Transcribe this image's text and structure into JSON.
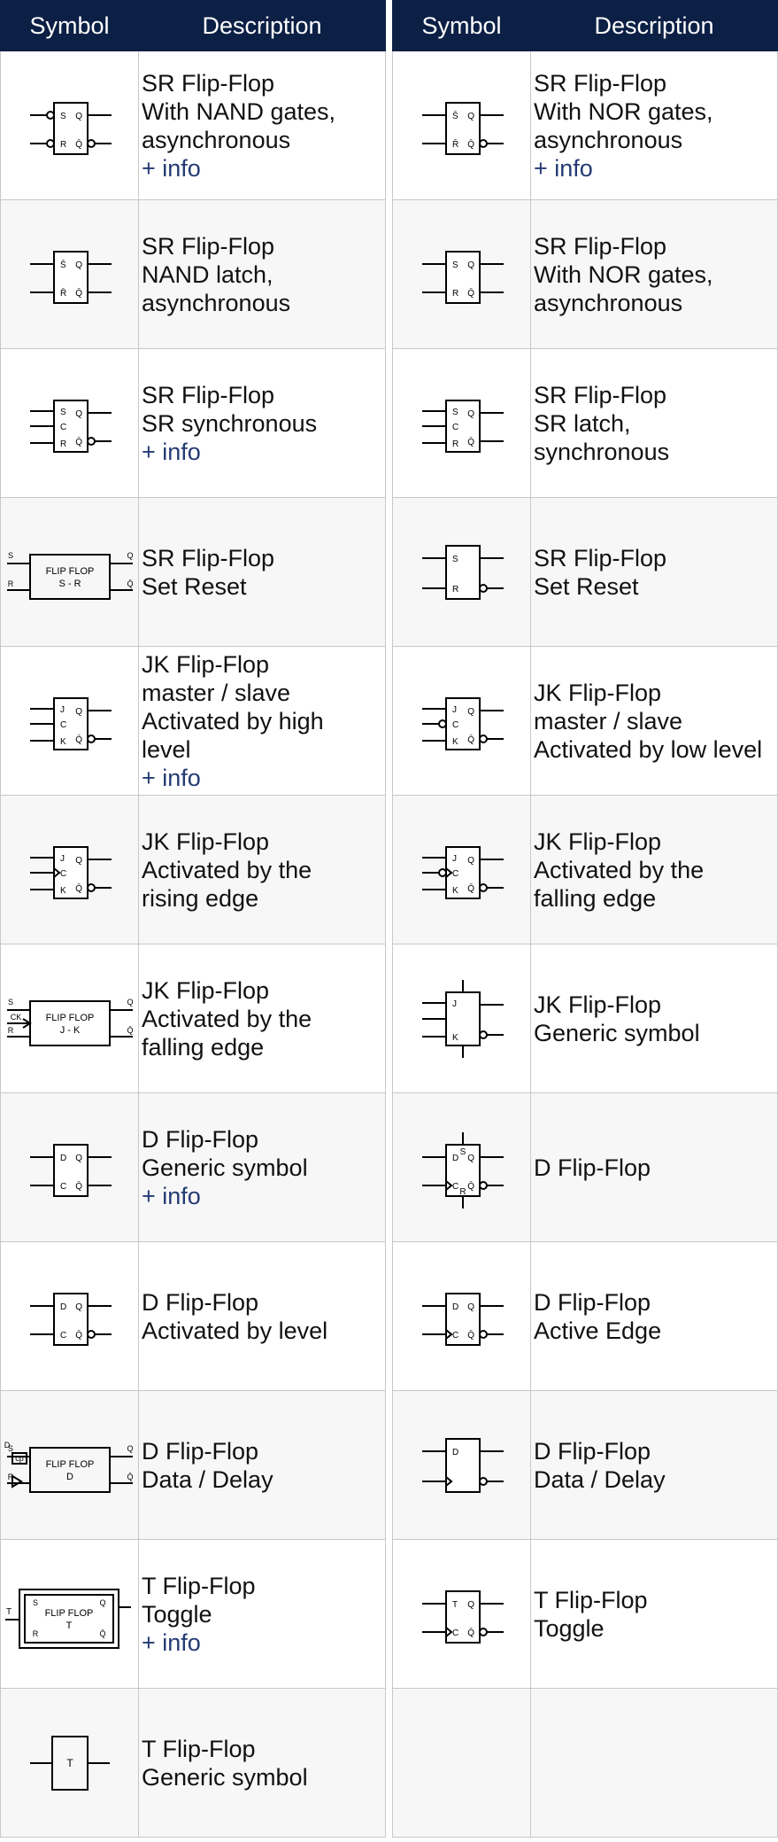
{
  "header": {
    "symbol": "Symbol",
    "description": "Description"
  },
  "columns": [
    {
      "rows": [
        {
          "symbol": "sr-nand-async",
          "lines": [
            "SR Flip-Flop",
            "With NAND gates,",
            "asynchronous"
          ],
          "info": "+ info"
        },
        {
          "symbol": "sr-nand-latch",
          "lines": [
            "SR Flip-Flop",
            "NAND latch,",
            "asynchronous"
          ]
        },
        {
          "symbol": "sr-sync",
          "lines": [
            "SR Flip-Flop",
            "SR synchronous"
          ],
          "info": "+ info"
        },
        {
          "symbol": "sr-block",
          "lines": [
            "SR Flip-Flop",
            "Set Reset"
          ]
        },
        {
          "symbol": "jk-high",
          "lines": [
            "JK Flip-Flop",
            "master / slave",
            "Activated by high",
            "level"
          ],
          "info": "+ info"
        },
        {
          "symbol": "jk-rising",
          "lines": [
            "JK Flip-Flop",
            "Activated by the",
            "rising edge"
          ]
        },
        {
          "symbol": "jk-block",
          "lines": [
            "JK Flip-Flop",
            "Activated by the",
            "falling edge"
          ]
        },
        {
          "symbol": "d-generic",
          "lines": [
            "D Flip-Flop",
            "Generic symbol"
          ],
          "info": "+ info"
        },
        {
          "symbol": "d-level",
          "lines": [
            "D Flip-Flop",
            "Activated by level"
          ]
        },
        {
          "symbol": "d-block",
          "lines": [
            "D Flip-Flop",
            "Data / Delay"
          ]
        },
        {
          "symbol": "t-block",
          "lines": [
            "T Flip-Flop",
            "Toggle"
          ],
          "info": "+ info"
        },
        {
          "symbol": "t-generic",
          "lines": [
            "T Flip-Flop",
            "Generic symbol"
          ]
        }
      ]
    },
    {
      "rows": [
        {
          "symbol": "sr-nor-async",
          "lines": [
            "SR Flip-Flop",
            "With NOR gates,",
            "asynchronous"
          ],
          "info": "+ info"
        },
        {
          "symbol": "sr-nor-plain",
          "lines": [
            "SR Flip-Flop",
            "With NOR gates,",
            "asynchronous"
          ]
        },
        {
          "symbol": "sr-latch-sync",
          "lines": [
            "SR Flip-Flop",
            "SR latch,",
            "synchronous"
          ]
        },
        {
          "symbol": "sr-simple",
          "lines": [
            "SR Flip-Flop",
            "Set Reset"
          ]
        },
        {
          "symbol": "jk-low",
          "lines": [
            "JK Flip-Flop",
            "master / slave",
            "Activated by low level"
          ]
        },
        {
          "symbol": "jk-falling",
          "lines": [
            "JK Flip-Flop",
            "Activated by the",
            "falling edge"
          ]
        },
        {
          "symbol": "jk-generic",
          "lines": [
            "JK Flip-Flop",
            "Generic symbol"
          ]
        },
        {
          "symbol": "d-sr",
          "lines": [
            "D Flip-Flop"
          ]
        },
        {
          "symbol": "d-edge",
          "lines": [
            "D Flip-Flop",
            "Active Edge"
          ]
        },
        {
          "symbol": "d-simple",
          "lines": [
            "D Flip-Flop",
            "Data / Delay"
          ]
        },
        {
          "symbol": "t-edge",
          "lines": [
            "T Flip-Flop",
            "Toggle"
          ]
        },
        {
          "symbol": "",
          "lines": []
        }
      ]
    }
  ],
  "symbols": {
    "sr-nand-async": {
      "in": [
        [
          "S",
          "bubble"
        ],
        [
          "R",
          "bubble"
        ]
      ],
      "out": [
        "Q",
        "Q̄"
      ],
      "outBubble": [
        false,
        true
      ]
    },
    "sr-nand-latch": {
      "in": [
        [
          "S̄",
          ""
        ],
        [
          "R̄",
          ""
        ]
      ],
      "out": [
        "Q",
        "Q̄"
      ],
      "outBubble": [
        false,
        false
      ]
    },
    "sr-sync": {
      "in": [
        [
          "S",
          ""
        ],
        [
          "C",
          ""
        ],
        [
          "R",
          ""
        ]
      ],
      "out": [
        "Q",
        "Q̄"
      ],
      "outBubble": [
        false,
        true
      ]
    },
    "sr-block": {
      "big": [
        "FLIP FLOP",
        "S - R"
      ],
      "pins": [
        "S",
        "R",
        "Q",
        "Q̄"
      ]
    },
    "jk-high": {
      "in": [
        [
          "J",
          ""
        ],
        [
          "C",
          ""
        ],
        [
          "K",
          ""
        ]
      ],
      "out": [
        "Q",
        "Q̄"
      ],
      "outBubble": [
        false,
        true
      ]
    },
    "jk-rising": {
      "in": [
        [
          "J",
          ""
        ],
        [
          "C",
          "edge"
        ],
        [
          "K",
          ""
        ]
      ],
      "out": [
        "Q",
        "Q̄"
      ],
      "outBubble": [
        false,
        true
      ]
    },
    "jk-block": {
      "big": [
        "FLIP FLOP",
        "J - K"
      ],
      "pins": [
        "S",
        "R",
        "Q",
        "Q̄"
      ],
      "ck": "CK"
    },
    "d-generic": {
      "in": [
        [
          "D",
          ""
        ],
        [
          "C",
          ""
        ]
      ],
      "out": [
        "Q",
        "Q̄"
      ],
      "outBubble": [
        false,
        false
      ]
    },
    "d-level": {
      "in": [
        [
          "D",
          ""
        ],
        [
          "C",
          ""
        ]
      ],
      "out": [
        "Q",
        "Q̄"
      ],
      "outBubble": [
        false,
        true
      ]
    },
    "d-block": {
      "big": [
        "FLIP FLOP",
        "D"
      ],
      "pins": [
        "S",
        "R",
        "Q",
        "Q̄"
      ],
      "dpin": "D",
      "cp": "cp"
    },
    "t-block": {
      "big": [
        "FLIP FLOP",
        "T"
      ],
      "pins": [
        "S",
        "R",
        "Q",
        "Q̄"
      ],
      "tpin": "T"
    },
    "t-generic": {
      "tonly": "T"
    },
    "sr-nor-async": {
      "in": [
        [
          "S̄",
          ""
        ],
        [
          "R̄",
          ""
        ]
      ],
      "out": [
        "Q",
        "Q̄"
      ],
      "outBubble": [
        false,
        true
      ]
    },
    "sr-nor-plain": {
      "in": [
        [
          "S",
          ""
        ],
        [
          "R",
          ""
        ]
      ],
      "out": [
        "Q",
        "Q̄"
      ],
      "outBubble": [
        false,
        false
      ]
    },
    "sr-latch-sync": {
      "in": [
        [
          "S",
          ""
        ],
        [
          "C",
          ""
        ],
        [
          "R",
          ""
        ]
      ],
      "out": [
        "Q",
        "Q̄"
      ],
      "outBubble": [
        false,
        false
      ]
    },
    "sr-simple": {
      "tall": true,
      "in": [
        [
          "S",
          ""
        ],
        [
          "R",
          ""
        ]
      ],
      "outBubble": [
        false,
        true
      ]
    },
    "jk-low": {
      "in": [
        [
          "J",
          ""
        ],
        [
          "C",
          "bubble"
        ],
        [
          "K",
          ""
        ]
      ],
      "out": [
        "Q",
        "Q̄"
      ],
      "outBubble": [
        false,
        true
      ]
    },
    "jk-falling": {
      "in": [
        [
          "J",
          ""
        ],
        [
          "C",
          "bubbleedge"
        ],
        [
          "K",
          ""
        ]
      ],
      "out": [
        "Q",
        "Q̄"
      ],
      "outBubble": [
        false,
        true
      ]
    },
    "jk-generic": {
      "tall": true,
      "vert": true,
      "in": [
        [
          "J",
          ""
        ],
        [
          "",
          ""
        ],
        [
          "K",
          ""
        ]
      ],
      "outBubble": [
        false,
        true
      ]
    },
    "d-sr": {
      "in": [
        [
          "D",
          ""
        ],
        [
          "C",
          "edge"
        ]
      ],
      "out": [
        "Q",
        "Q̄"
      ],
      "outBubble": [
        false,
        true
      ],
      "sr": [
        "S",
        "R"
      ]
    },
    "d-edge": {
      "in": [
        [
          "D",
          ""
        ],
        [
          "C",
          "edge"
        ]
      ],
      "out": [
        "Q",
        "Q̄"
      ],
      "outBubble": [
        false,
        true
      ]
    },
    "d-simple": {
      "tall": true,
      "in": [
        [
          "D",
          ""
        ],
        [
          "",
          "edge"
        ]
      ],
      "outBubble": [
        false,
        true
      ]
    },
    "t-edge": {
      "in": [
        [
          "T",
          ""
        ],
        [
          "C",
          "edge"
        ]
      ],
      "out": [
        "Q",
        "Q̄"
      ],
      "outBubble": [
        false,
        true
      ]
    }
  }
}
